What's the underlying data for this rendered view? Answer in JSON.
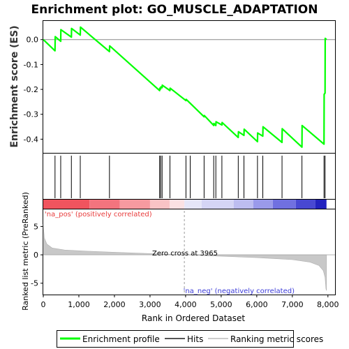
{
  "chart_data": {
    "type": "line",
    "title": "Enrichment plot: GO_MUSCLE_ADAPTATION",
    "xlabel": "Rank in Ordered Dataset",
    "ylabel_top": "Enrichment score (ES)",
    "ylabel_bottom": "Ranked list metric (PreRanked)",
    "x_ticks": [
      0,
      1000,
      2000,
      3000,
      4000,
      5000,
      6000,
      7000,
      8000
    ],
    "es_y_ticks": [
      0.0,
      -0.1,
      -0.2,
      -0.3,
      -0.4
    ],
    "es_ylim": [
      -0.455,
      0.075
    ],
    "metric_y_ticks": [
      5,
      0,
      -5
    ],
    "metric_ylim": [
      -7,
      8
    ],
    "xlim": [
      0,
      8200
    ],
    "n_genes": 7960,
    "zero_cross": 3965,
    "zero_cross_label": "Zero cross at 3965",
    "pos_label": "'na_pos' (positively correlated)",
    "neg_label": "'na_neg' (negatively correlated)",
    "hits": [
      330,
      490,
      790,
      1040,
      1860,
      3270,
      3300,
      3340,
      3560,
      4010,
      4130,
      4520,
      4790,
      4850,
      5020,
      5480,
      5640,
      6020,
      6170,
      6710,
      7270,
      7890,
      7920
    ],
    "es_curve": [
      [
        0,
        0.0
      ],
      [
        330,
        -0.045
      ],
      [
        335,
        0.012
      ],
      [
        490,
        -0.007
      ],
      [
        495,
        0.04
      ],
      [
        790,
        0.01
      ],
      [
        795,
        0.045
      ],
      [
        1040,
        0.018
      ],
      [
        1045,
        0.05
      ],
      [
        1860,
        -0.048
      ],
      [
        1865,
        -0.025
      ],
      [
        3270,
        -0.205
      ],
      [
        3275,
        -0.195
      ],
      [
        3300,
        -0.198
      ],
      [
        3305,
        -0.19
      ],
      [
        3340,
        -0.193
      ],
      [
        3345,
        -0.183
      ],
      [
        3560,
        -0.205
      ],
      [
        3565,
        -0.195
      ],
      [
        4010,
        -0.245
      ],
      [
        4015,
        -0.24
      ],
      [
        4520,
        -0.31
      ],
      [
        4525,
        -0.305
      ],
      [
        4790,
        -0.345
      ],
      [
        4795,
        -0.337
      ],
      [
        4850,
        -0.345
      ],
      [
        4855,
        -0.33
      ],
      [
        5020,
        -0.343
      ],
      [
        5025,
        -0.333
      ],
      [
        5480,
        -0.393
      ],
      [
        5485,
        -0.37
      ],
      [
        5640,
        -0.385
      ],
      [
        5645,
        -0.36
      ],
      [
        6020,
        -0.41
      ],
      [
        6025,
        -0.375
      ],
      [
        6170,
        -0.388
      ],
      [
        6175,
        -0.35
      ],
      [
        6710,
        -0.413
      ],
      [
        6715,
        -0.358
      ],
      [
        7270,
        -0.432
      ],
      [
        7275,
        -0.345
      ],
      [
        7890,
        -0.42
      ],
      [
        7893,
        -0.22
      ],
      [
        7920,
        -0.215
      ],
      [
        7923,
        0.005
      ],
      [
        7960,
        0.0
      ]
    ],
    "metric_curve": [
      [
        0,
        5.4
      ],
      [
        30,
        3.0
      ],
      [
        100,
        1.9
      ],
      [
        250,
        1.2
      ],
      [
        600,
        0.85
      ],
      [
        1200,
        0.65
      ],
      [
        2000,
        0.45
      ],
      [
        3000,
        0.22
      ],
      [
        3965,
        0.0
      ],
      [
        5000,
        -0.25
      ],
      [
        6000,
        -0.5
      ],
      [
        7000,
        -0.85
      ],
      [
        7500,
        -1.3
      ],
      [
        7750,
        -1.9
      ],
      [
        7870,
        -2.8
      ],
      [
        7920,
        -4.0
      ],
      [
        7945,
        -6.0
      ],
      [
        7960,
        -6.3
      ]
    ],
    "heat_segments": [
      {
        "from": 0,
        "to": 1300,
        "color": "#f0545e"
      },
      {
        "from": 1300,
        "to": 2150,
        "color": "#f3747e"
      },
      {
        "from": 2150,
        "to": 3000,
        "color": "#f69aa0"
      },
      {
        "from": 3000,
        "to": 3550,
        "color": "#f9c3c5"
      },
      {
        "from": 3550,
        "to": 3965,
        "color": "#fbe1e3"
      },
      {
        "from": 3965,
        "to": 4450,
        "color": "#e6e6f8"
      },
      {
        "from": 4450,
        "to": 5350,
        "color": "#d5d5f5"
      },
      {
        "from": 5350,
        "to": 5900,
        "color": "#bdbdf0"
      },
      {
        "from": 5900,
        "to": 6450,
        "color": "#9a9aea"
      },
      {
        "from": 6450,
        "to": 7100,
        "color": "#7070e0"
      },
      {
        "from": 7100,
        "to": 7650,
        "color": "#4848d2"
      },
      {
        "from": 7650,
        "to": 7960,
        "color": "#2222bf"
      }
    ],
    "colors": {
      "es_line": "#00ff00",
      "hit": "#000000",
      "metric_fill": "#c8c8c8",
      "zero_line": "#aaaaaa"
    },
    "legend": [
      {
        "label": "Enrichment profile",
        "icon": "green-line"
      },
      {
        "label": "Hits",
        "icon": "black-line"
      },
      {
        "label": "Ranking metric scores",
        "icon": "gray-line"
      }
    ]
  }
}
